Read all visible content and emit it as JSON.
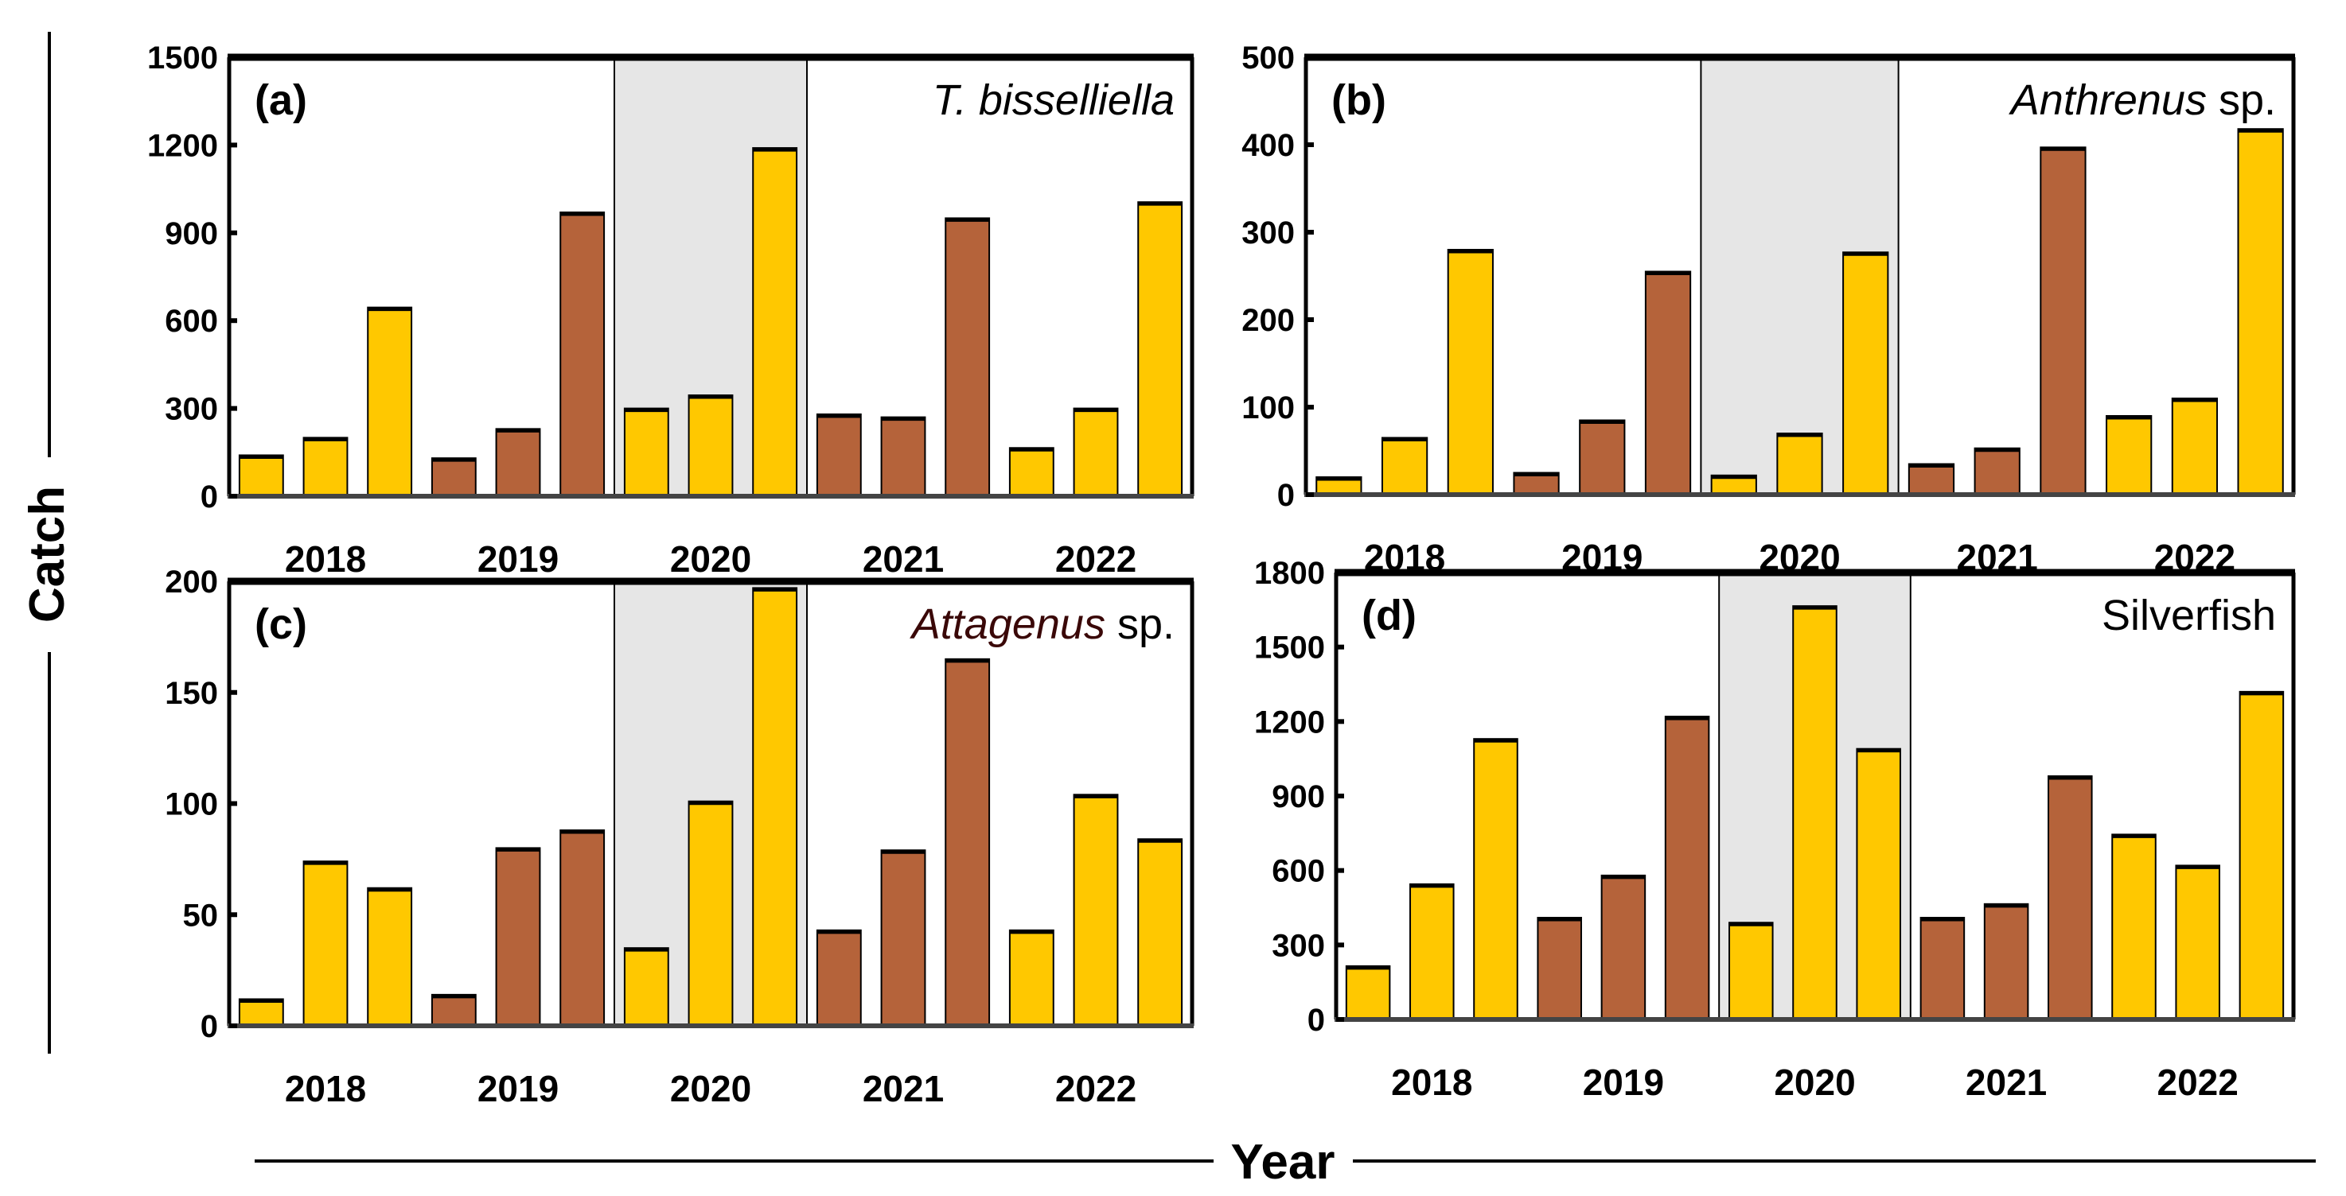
{
  "colors": {
    "yellow": "#FFC800",
    "brown": "#B5633A",
    "shade": "#E6E6E6",
    "attagenus": "#3A0808"
  },
  "axis": {
    "ylabel": "Catch",
    "xlabel": "Year",
    "years": [
      "2018",
      "2019",
      "2020",
      "2021",
      "2022"
    ],
    "shaded_year": "2020"
  },
  "chart_data": [
    {
      "type": "bar",
      "panel": "(a)",
      "title_italic": "T. bisselliella",
      "title_plain": "",
      "ylim": [
        0,
        1500
      ],
      "yticks": [
        "0",
        "300",
        "600",
        "900",
        "1200",
        "1500"
      ],
      "values": [
        140,
        200,
        645,
        130,
        230,
        970,
        300,
        345,
        1190,
        280,
        270,
        950,
        165,
        300,
        1005
      ],
      "bar_colors": [
        "yellow",
        "yellow",
        "yellow",
        "brown",
        "brown",
        "brown",
        "yellow",
        "yellow",
        "yellow",
        "brown",
        "brown",
        "brown",
        "yellow",
        "yellow",
        "yellow"
      ]
    },
    {
      "type": "bar",
      "panel": "(b)",
      "title_italic": "Anthrenus",
      "title_plain": " sp.",
      "ylim": [
        0,
        500
      ],
      "yticks": [
        "0",
        "100",
        "200",
        "300",
        "400",
        "500"
      ],
      "values": [
        20,
        65,
        280,
        25,
        85,
        255,
        22,
        70,
        277,
        35,
        53,
        397,
        90,
        110,
        418
      ],
      "bar_colors": [
        "yellow",
        "yellow",
        "yellow",
        "brown",
        "brown",
        "brown",
        "yellow",
        "yellow",
        "yellow",
        "brown",
        "brown",
        "brown",
        "yellow",
        "yellow",
        "yellow"
      ]
    },
    {
      "type": "bar",
      "panel": "(c)",
      "title_italic": "Attagenus",
      "title_plain": " sp.",
      "ylim": [
        0,
        200
      ],
      "yticks": [
        "0",
        "50",
        "100",
        "150",
        "200"
      ],
      "values": [
        12,
        74,
        62,
        14,
        80,
        88,
        35,
        101,
        197,
        43,
        79,
        165,
        43,
        104,
        84
      ],
      "bar_colors": [
        "yellow",
        "yellow",
        "yellow",
        "brown",
        "brown",
        "brown",
        "yellow",
        "yellow",
        "yellow",
        "brown",
        "brown",
        "brown",
        "yellow",
        "yellow",
        "yellow"
      ]
    },
    {
      "type": "bar",
      "panel": "(d)",
      "title_italic": "",
      "title_plain": "Silverfish",
      "ylim": [
        0,
        1800
      ],
      "yticks": [
        "0",
        "300",
        "600",
        "900",
        "1200",
        "1500",
        "1800"
      ],
      "values": [
        215,
        545,
        1130,
        410,
        580,
        1220,
        390,
        1665,
        1090,
        410,
        465,
        980,
        745,
        620,
        1320
      ],
      "bar_colors": [
        "yellow",
        "yellow",
        "yellow",
        "brown",
        "brown",
        "brown",
        "yellow",
        "yellow",
        "yellow",
        "brown",
        "brown",
        "brown",
        "yellow",
        "yellow",
        "yellow"
      ]
    }
  ]
}
